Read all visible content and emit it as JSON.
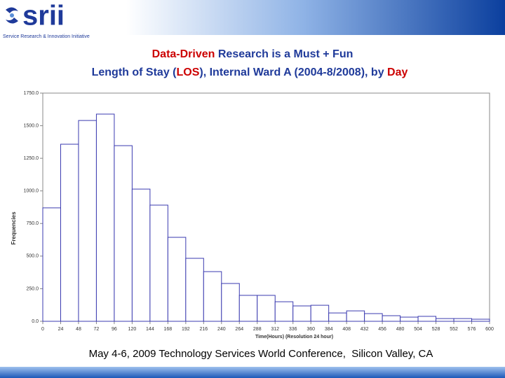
{
  "header": {
    "logo": "srii",
    "logo_tagline": "Service Research & Innovation Initiative"
  },
  "title_lines": [
    [
      {
        "text": "Data-Driven",
        "color": "#cc0000"
      },
      {
        "text": " Research is a Must + Fun",
        "color": "#1f3a9a"
      }
    ],
    [
      {
        "text": "Length of Stay (",
        "color": "#1f3a9a"
      },
      {
        "text": "LOS",
        "color": "#cc0000"
      },
      {
        "text": "), Internal Ward A (2004-8/2008), by ",
        "color": "#1f3a9a"
      },
      {
        "text": "Day",
        "color": "#cc0000"
      }
    ]
  ],
  "chart_data": {
    "type": "histogram",
    "bins": [
      0,
      24,
      48,
      72,
      96,
      120,
      144,
      168,
      192,
      216,
      240,
      264,
      288,
      312,
      336,
      360,
      384,
      408,
      432,
      456,
      480,
      504,
      528,
      552,
      576,
      600
    ],
    "values": [
      870,
      1358,
      1540,
      1589,
      1347,
      1014,
      891,
      644,
      483,
      381,
      290,
      199,
      199,
      150,
      118,
      123,
      64,
      80,
      59,
      43,
      32,
      38,
      21,
      21,
      16
    ],
    "color": "#3b3bb0",
    "xlabel": "Time(Hours) (Resolution 24 hour)",
    "ylabel": "Frequencies",
    "xlim": [
      0,
      600
    ],
    "ylim": [
      0,
      1750
    ],
    "xticks": [
      0,
      24,
      48,
      72,
      96,
      120,
      144,
      168,
      192,
      216,
      240,
      264,
      288,
      312,
      336,
      360,
      384,
      408,
      432,
      456,
      480,
      504,
      528,
      552,
      576,
      600
    ],
    "yticks": [
      {
        "value": 0,
        "label": "0.0"
      },
      {
        "value": 250,
        "label": "250.0"
      },
      {
        "value": 500,
        "label": "500.0"
      },
      {
        "value": 750,
        "label": "750.0"
      },
      {
        "value": 1000,
        "label": "1000.0"
      },
      {
        "value": 1250,
        "label": "1250.0"
      },
      {
        "value": 1500,
        "label": "1500.0"
      },
      {
        "value": 1750,
        "label": "1750.0"
      }
    ]
  },
  "footer": "May 4-6, 2009 Technology Services World Conference,  Silicon Valley, CA"
}
